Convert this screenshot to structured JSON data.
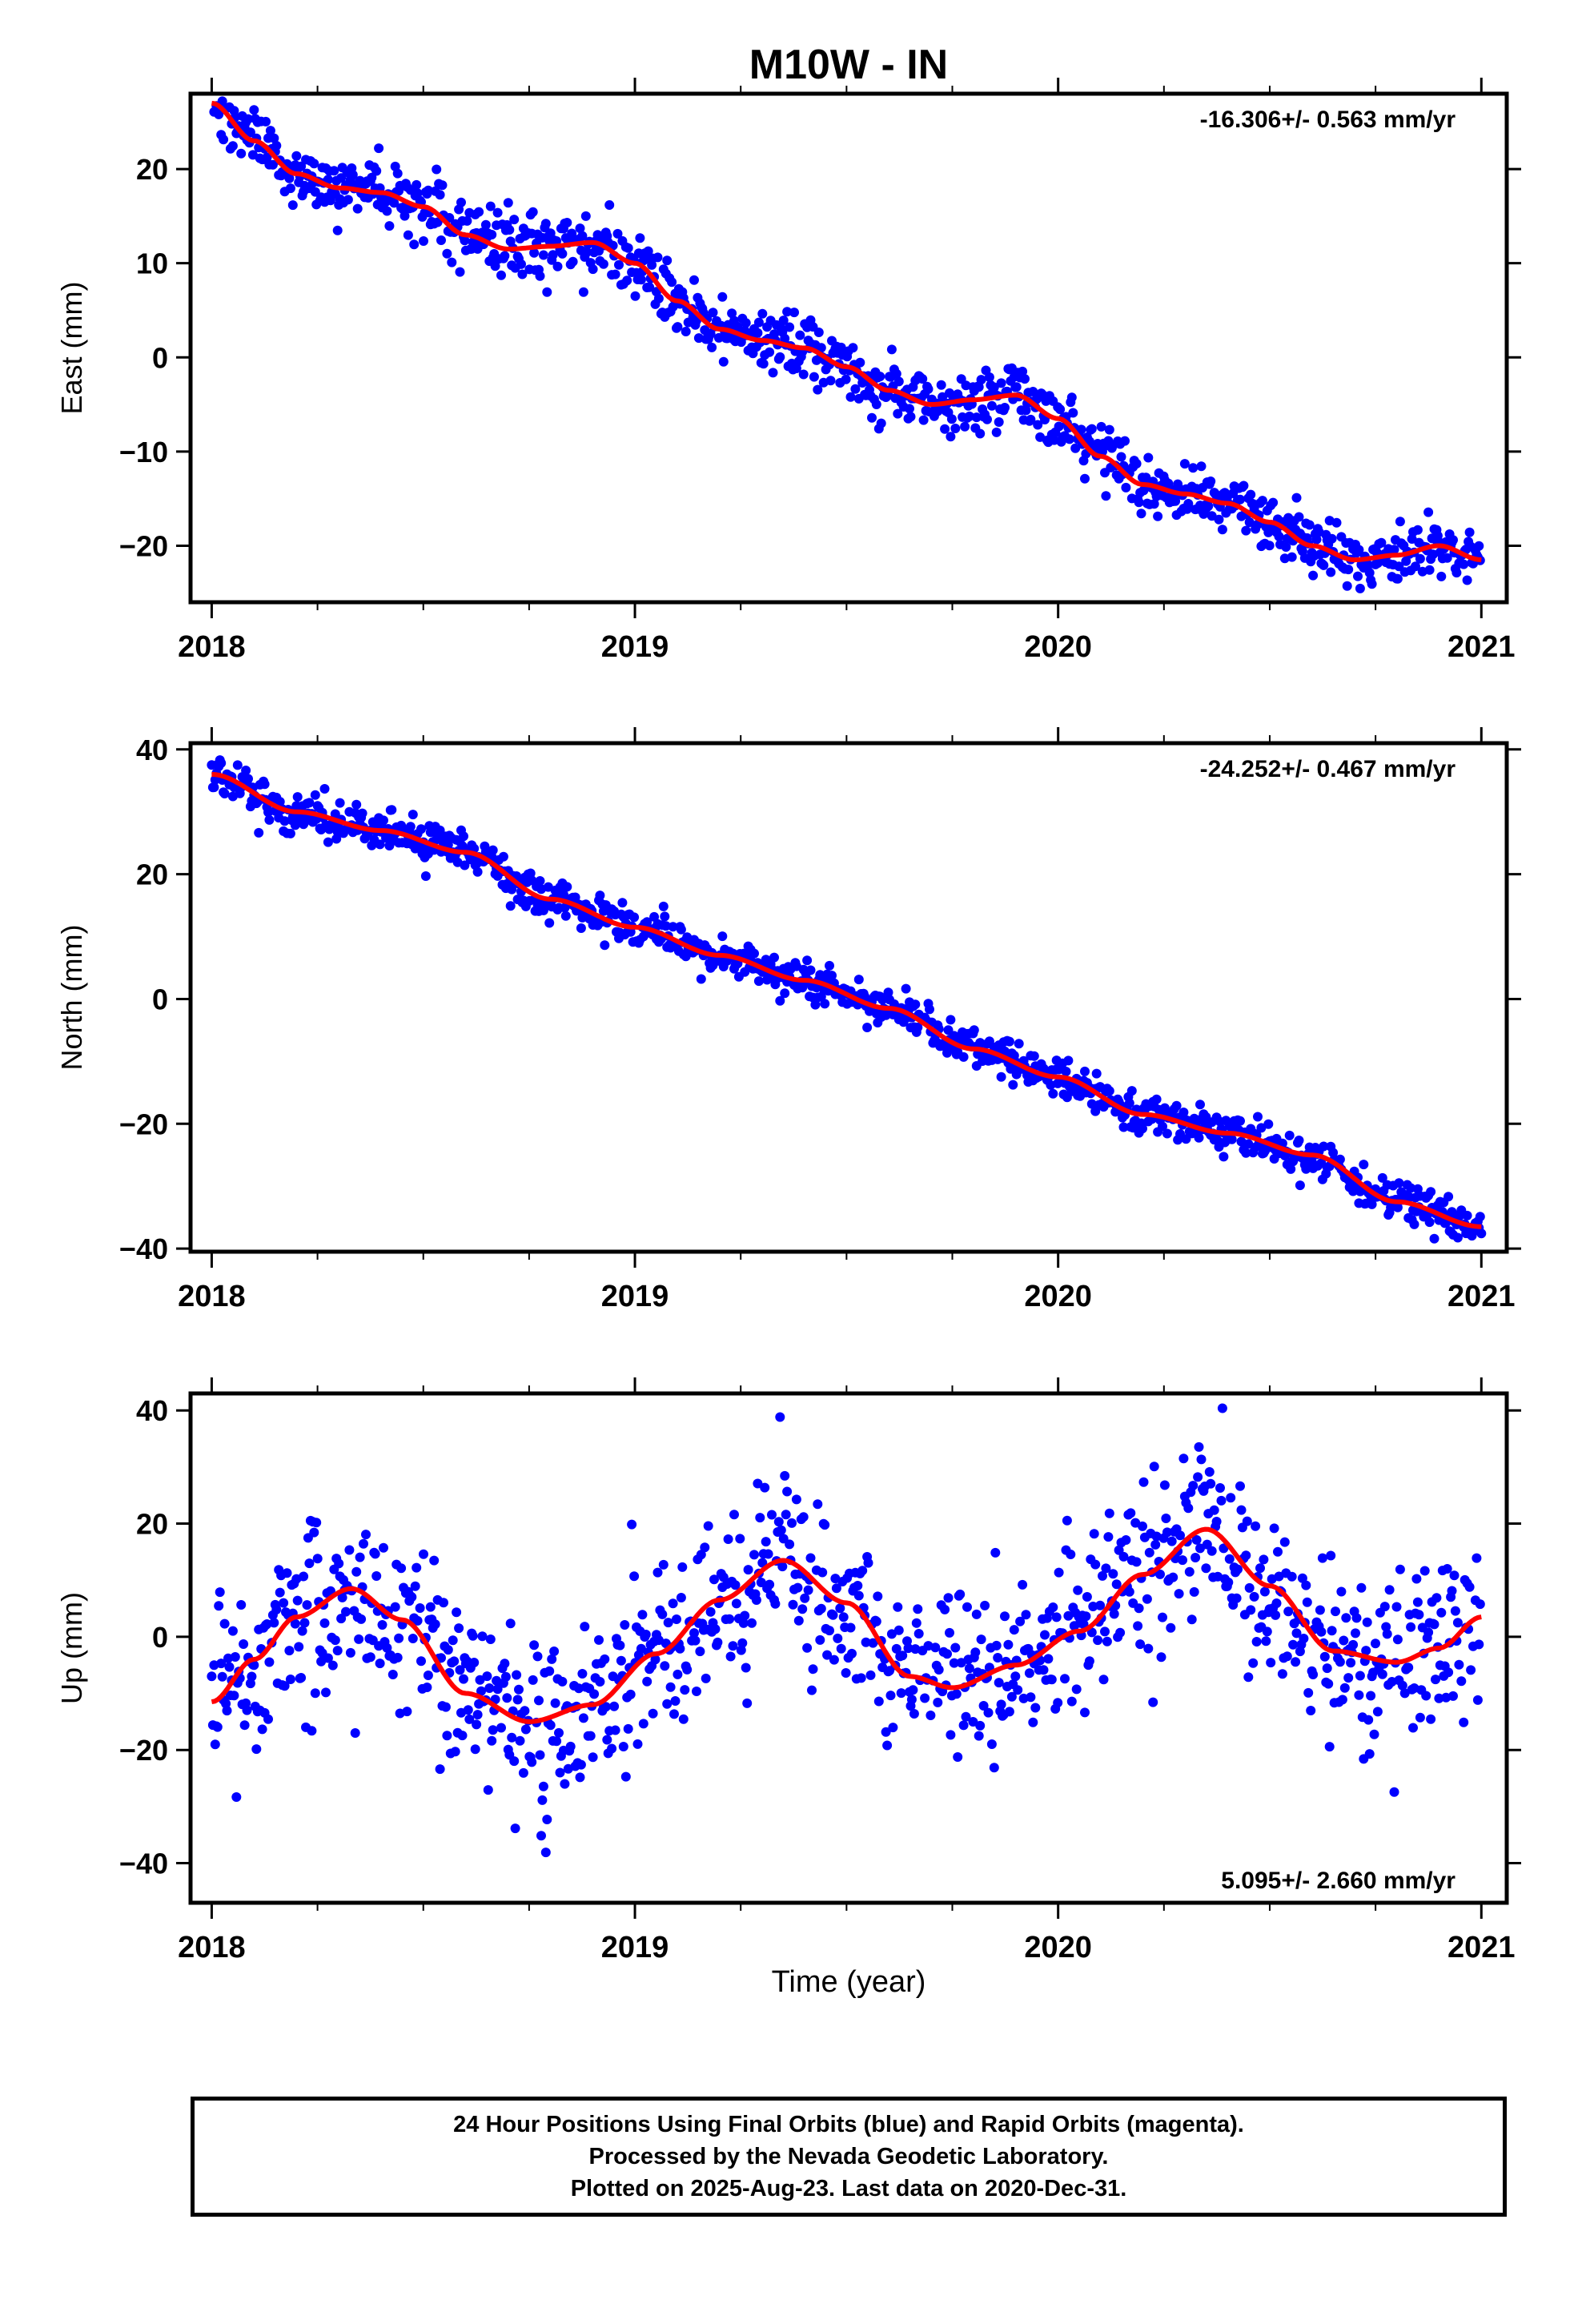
{
  "title": "M10W - IN",
  "xlabel": "Time (year)",
  "colors": {
    "points": "#0000ff",
    "fit": "#ff0000",
    "frame": "#000000"
  },
  "footer": {
    "line1": "24 Hour Positions Using Final Orbits (blue) and Rapid Orbits (magenta).",
    "line2": "Processed by the Nevada Geodetic Laboratory.",
    "line3": "Plotted on 2025-Aug-23. Last data on 2020-Dec-31."
  },
  "chart_data": [
    {
      "type": "scatter",
      "name": "east",
      "ylabel": "East (mm)",
      "rate_label": "-16.306+/- 0.563 mm/yr",
      "xlim": [
        2017.95,
        2021.06
      ],
      "ylim": [
        -26,
        28
      ],
      "xticks": [
        "2018",
        "2019",
        "2020",
        "2021"
      ],
      "yticks": [
        20,
        10,
        0,
        -10,
        -20
      ],
      "ytick_labels": [
        "20",
        "10",
        "0",
        "−10",
        "−20"
      ],
      "fit_curve": {
        "x": [
          2018.0,
          2018.1,
          2018.2,
          2018.3,
          2018.4,
          2018.5,
          2018.6,
          2018.7,
          2018.8,
          2018.9,
          2019.0,
          2019.1,
          2019.2,
          2019.3,
          2019.4,
          2019.5,
          2019.6,
          2019.7,
          2019.8,
          2019.9,
          2020.0,
          2020.1,
          2020.2,
          2020.3,
          2020.4,
          2020.5,
          2020.6,
          2020.7,
          2020.8,
          2020.9,
          2021.0
        ],
        "y": [
          27,
          23,
          19.5,
          18,
          17.5,
          16,
          13,
          11.5,
          11.8,
          12.2,
          10,
          6,
          3,
          1.8,
          1,
          -1,
          -3.5,
          -5,
          -4.5,
          -4,
          -6.5,
          -10.5,
          -13.5,
          -14.5,
          -15.5,
          -17.5,
          -20,
          -21.5,
          -21,
          -20,
          -21.5
        ]
      },
      "points": {
        "sampling": "daily",
        "x_range": [
          2018.0,
          2021.0
        ],
        "trend": "follows fit_curve",
        "scatter_mm": 1.7
      }
    },
    {
      "type": "scatter",
      "name": "north",
      "ylabel": "North (mm)",
      "rate_label": "-24.252+/- 0.467 mm/yr",
      "xlim": [
        2017.95,
        2021.06
      ],
      "ylim": [
        -40.5,
        41
      ],
      "xticks": [
        "2018",
        "2019",
        "2020",
        "2021"
      ],
      "yticks": [
        40,
        20,
        0,
        -20,
        -40
      ],
      "ytick_labels": [
        "40",
        "20",
        "0",
        "−20",
        "−40"
      ],
      "fit_curve": {
        "x": [
          2018.0,
          2018.2,
          2018.4,
          2018.6,
          2018.8,
          2019.0,
          2019.2,
          2019.4,
          2019.6,
          2019.8,
          2020.0,
          2020.2,
          2020.4,
          2020.6,
          2020.8,
          2021.0
        ],
        "y": [
          36,
          30,
          27,
          23.5,
          16,
          11.5,
          7,
          3,
          -1.5,
          -8,
          -12.5,
          -18.5,
          -21.5,
          -25,
          -32.5,
          -36.5
        ]
      },
      "points": {
        "sampling": "daily",
        "x_range": [
          2018.0,
          2021.0
        ],
        "trend": "follows fit_curve",
        "scatter_mm": 1.5
      }
    },
    {
      "type": "scatter",
      "name": "up",
      "ylabel": "Up (mm)",
      "rate_label": "5.095+/- 2.660 mm/yr",
      "xlim": [
        2017.95,
        2021.06
      ],
      "ylim": [
        -47,
        43
      ],
      "xticks": [
        "2018",
        "2019",
        "2020",
        "2021"
      ],
      "yticks": [
        40,
        20,
        0,
        -20,
        -40
      ],
      "ytick_labels": [
        "40",
        "20",
        "0",
        "−20",
        "−40"
      ],
      "fit_curve": {
        "x": [
          2018.0,
          2018.1,
          2018.2,
          2018.33,
          2018.45,
          2018.6,
          2018.75,
          2018.9,
          2019.05,
          2019.2,
          2019.35,
          2019.5,
          2019.65,
          2019.75,
          2019.9,
          2020.05,
          2020.2,
          2020.35,
          2020.5,
          2020.65,
          2020.8,
          2020.9,
          2021.0
        ],
        "y": [
          -11.5,
          -4,
          3.5,
          8.5,
          3,
          -10,
          -15,
          -12,
          -3,
          6.5,
          13.5,
          6,
          -7,
          -9,
          -5,
          1,
          11,
          19,
          9,
          -2.5,
          -4.5,
          -2,
          3.5
        ]
      },
      "points": {
        "sampling": "daily",
        "x_range": [
          2018.0,
          2021.0
        ],
        "trend": "follows fit_curve",
        "scatter_mm": 8
      }
    }
  ]
}
